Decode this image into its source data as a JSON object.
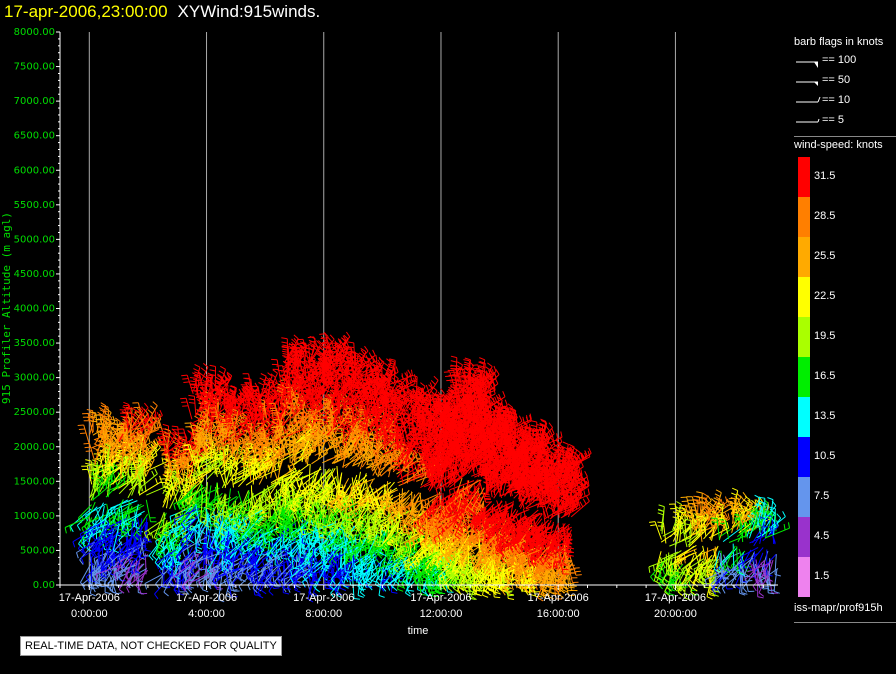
{
  "header": {
    "date": "17-apr-2006,23:00:00",
    "name": "XYWind:915winds."
  },
  "legend": {
    "flags_title": "barb flags in knots",
    "flags": [
      "== 100",
      "== 50",
      "== 10",
      "== 5"
    ],
    "speed_title": "wind-speed: knots",
    "colors": [
      "#ff0000",
      "#ff7f00",
      "#ffaa00",
      "#ffff00",
      "#aaff00",
      "#00ee00",
      "#00ffff",
      "#0000ff",
      "#6495ed",
      "#9932cc",
      "#ee82ee"
    ],
    "speed_labels": [
      "31.5",
      "28.5",
      "25.5",
      "22.5",
      "19.5",
      "16.5",
      "13.5",
      "10.5",
      "7.5",
      "4.5",
      "1.5"
    ],
    "source": "iss-mapr/prof915h"
  },
  "notice": "REAL-TIME DATA, NOT CHECKED FOR QUALITY",
  "chart_data": {
    "type": "scatter",
    "title": "17-apr-2006,23:00:00 XYWind:915winds.",
    "xlabel": "time",
    "ylabel": "915 Profiler Altitude (m agl)",
    "ylim": [
      0,
      8000
    ],
    "yticks": [
      "0.00",
      "500.00",
      "1000.00",
      "1500.00",
      "2000.00",
      "2500.00",
      "3000.00",
      "3500.00",
      "4000.00",
      "4500.00",
      "5000.00",
      "5500.00",
      "6000.00",
      "6500.00",
      "7000.00",
      "7500.00",
      "8000.00"
    ],
    "xticks": [
      {
        "date": "17-Apr-2006",
        "time": "0:00:00"
      },
      {
        "date": "17-Apr-2006",
        "time": "4:00:00"
      },
      {
        "date": "17-Apr-2006",
        "time": "8:00:00"
      },
      {
        "date": "17-Apr-2006",
        "time": "12:00:00"
      },
      {
        "date": "17-Apr-2006",
        "time": "16:00:00"
      },
      {
        "date": "17-Apr-2006",
        "time": "20:00:00"
      }
    ],
    "xlim_hours": [
      -1,
      23.5
    ],
    "grid": "vertical lines at major time ticks",
    "profiles": [
      {
        "hour": 0.5,
        "top": 2200,
        "speed": [
          8,
          10,
          12,
          14,
          18,
          22,
          26,
          28
        ]
      },
      {
        "hour": 1.5,
        "top": 2300,
        "speed": [
          6,
          9,
          11,
          16,
          20,
          24,
          28,
          30
        ]
      },
      {
        "hour": 3.0,
        "top": 2000,
        "speed": [
          9,
          12,
          15,
          18,
          21,
          25,
          29,
          31
        ]
      },
      {
        "hour": 4.0,
        "top": 2800,
        "speed": [
          7,
          10,
          13,
          17,
          21,
          26,
          30,
          32
        ]
      },
      {
        "hour": 5.0,
        "top": 2600,
        "speed": [
          8,
          11,
          14,
          18,
          22,
          27,
          30,
          32
        ]
      },
      {
        "hour": 6.0,
        "top": 2700,
        "speed": [
          10,
          12,
          16,
          20,
          24,
          28,
          31,
          33
        ]
      },
      {
        "hour": 7.0,
        "top": 3200,
        "speed": [
          9,
          13,
          17,
          21,
          25,
          29,
          31,
          33
        ]
      },
      {
        "hour": 8.0,
        "top": 3300,
        "speed": [
          11,
          14,
          18,
          22,
          26,
          30,
          32,
          34
        ]
      },
      {
        "hour": 9.0,
        "top": 3100,
        "speed": [
          12,
          15,
          19,
          23,
          27,
          30,
          32,
          34
        ]
      },
      {
        "hour": 10.0,
        "top": 2900,
        "speed": [
          13,
          16,
          20,
          24,
          28,
          31,
          33,
          34
        ]
      },
      {
        "hour": 11.0,
        "top": 2600,
        "speed": [
          14,
          18,
          22,
          26,
          30,
          32,
          33,
          34
        ]
      },
      {
        "hour": 12.0,
        "top": 2500,
        "speed": [
          16,
          22,
          27,
          30,
          32,
          33,
          34,
          34
        ]
      },
      {
        "hour": 13.0,
        "top": 2900,
        "speed": [
          20,
          25,
          29,
          31,
          33,
          34,
          34,
          34
        ]
      },
      {
        "hour": 14.0,
        "top": 2300,
        "speed": [
          22,
          27,
          30,
          32,
          33,
          34,
          34,
          34
        ]
      },
      {
        "hour": 15.0,
        "top": 2000,
        "speed": [
          24,
          28,
          31,
          33,
          34,
          34,
          34,
          34
        ]
      },
      {
        "hour": 16.0,
        "top": 1700,
        "speed": [
          26,
          29,
          31,
          33,
          34,
          34,
          34,
          34
        ]
      },
      {
        "hour": 20.0,
        "top": 800,
        "speed": [
          18,
          20,
          22
        ]
      },
      {
        "hour": 21.0,
        "top": 1000,
        "speed": [
          20,
          24,
          27
        ]
      },
      {
        "hour": 22.0,
        "top": 1000,
        "speed": [
          8,
          16,
          24
        ]
      },
      {
        "hour": 23.0,
        "top": 900,
        "speed": [
          6,
          10,
          14
        ]
      }
    ]
  }
}
